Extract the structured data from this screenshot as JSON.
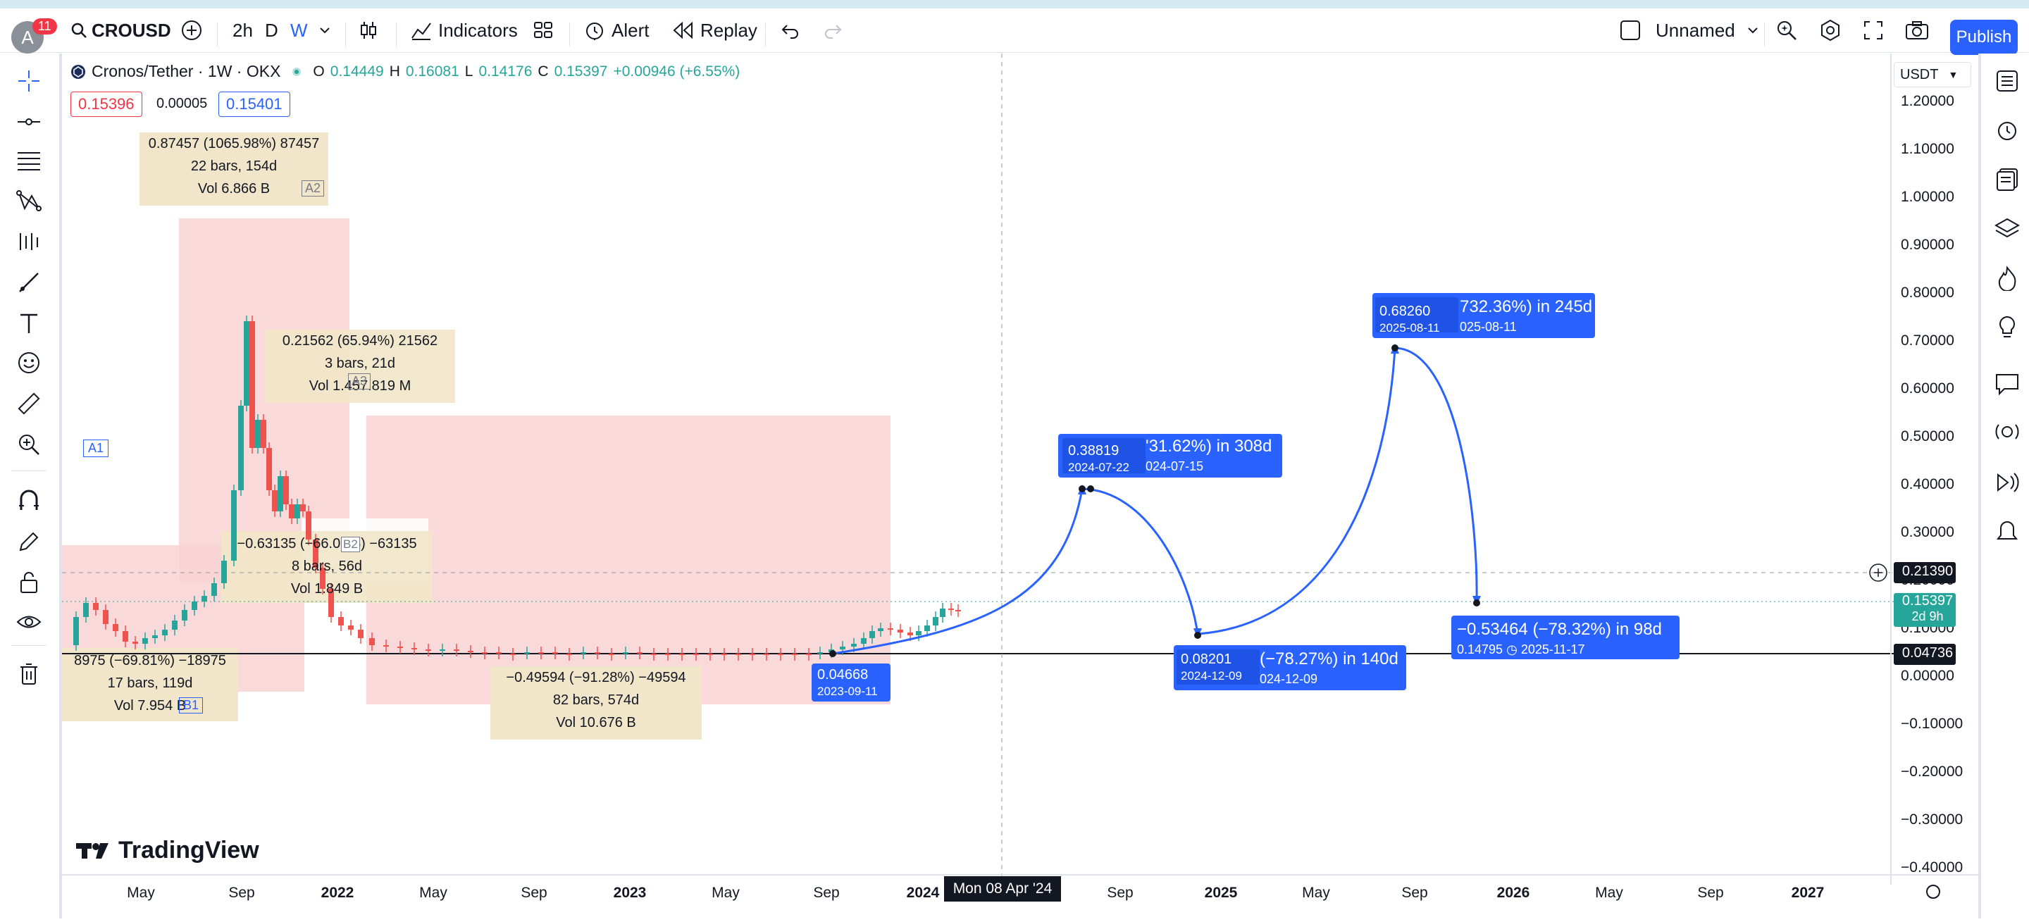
{
  "topbar": {
    "notifications": "11",
    "avatar_letter": "A",
    "symbol": "CROUSD",
    "intervals": [
      "2h",
      "D",
      "W"
    ],
    "indicators_label": "Indicators",
    "alert_label": "Alert",
    "replay_label": "Replay",
    "layout_name": "Unnamed",
    "publish_label": "Publish"
  },
  "legend": {
    "title": "Cronos/Tether · 1W · OKX",
    "o_label": "O",
    "o": "0.14449",
    "h_label": "H",
    "h": "0.16081",
    "l_label": "L",
    "l": "0.14176",
    "c_label": "C",
    "c": "0.15397",
    "change": "+0.00946 (+6.55%)",
    "bid": "0.15396",
    "spread": "0.00005",
    "ask": "0.15401"
  },
  "unit": "USDT",
  "price_axis": [
    "1.20000",
    "1.10000",
    "1.00000",
    "0.90000",
    "0.80000",
    "0.70000",
    "0.60000",
    "0.50000",
    "0.40000",
    "0.30000",
    "0.20000",
    "0.10000",
    "0.00000",
    "−0.10000",
    "−0.20000",
    "−0.30000",
    "−0.40000"
  ],
  "price_marks": {
    "crosshair": "0.21390",
    "last": "0.15397",
    "countdown": "2d 9h",
    "hline": "0.04736"
  },
  "time_axis": [
    "May",
    "Sep",
    "2022",
    "May",
    "Sep",
    "2023",
    "May",
    "Sep",
    "2024",
    "Sep",
    "2025",
    "May",
    "Sep",
    "2026",
    "May",
    "Sep",
    "2027"
  ],
  "crosshair_date": "Mon 08 Apr '24",
  "boxes": {
    "a2": {
      "line1": "0.87457 (1065.98%) 87457",
      "line2": "22 bars, 154d",
      "line3": "Vol 6.866 B",
      "tag": "A2"
    },
    "a3": {
      "line1": "0.21562 (65.94%) 21562",
      "line2": "3 bars, 21d",
      "line3": "Vol 1.457.819 M",
      "tag": "A3"
    },
    "a1": {
      "tag": "A1"
    },
    "b2": {
      "line1": "−0.63135 (−66.00%) −63135",
      "line2": "8 bars, 56d",
      "line3": "Vol 1.849 B",
      "tag": "B2"
    },
    "b1": {
      "line1": "8975 (−69.81%) −18975",
      "line2": "17 bars, 119d",
      "line3": "Vol 7.954 B",
      "tag": "B1"
    },
    "b3": {
      "line1": "−0.49594 (−91.28%) −49594",
      "line2": "82 bars, 574d",
      "line3": "Vol 10.676 B"
    }
  },
  "projection": {
    "p1": {
      "price": "0.04668",
      "date": "2023-09-11"
    },
    "p2": {
      "price": "0.38819",
      "date": "2024-07-22",
      "pct": "'31.62%) in 308d",
      "date2": "024-07-15"
    },
    "p3": {
      "price": "0.08201",
      "date": "2024-12-09",
      "pct": "(−78.27%) in 140d",
      "date2": "024-12-09"
    },
    "p4": {
      "price": "0.68260",
      "date": "2025-08-11",
      "pct": "732.36%) in 245d",
      "date2": "025-08-11"
    },
    "p5": {
      "pct": "−0.53464 (−78.32%) in 98d",
      "price": "0.14795",
      "date": "2025-11-17"
    }
  },
  "logo": "TradingView"
}
